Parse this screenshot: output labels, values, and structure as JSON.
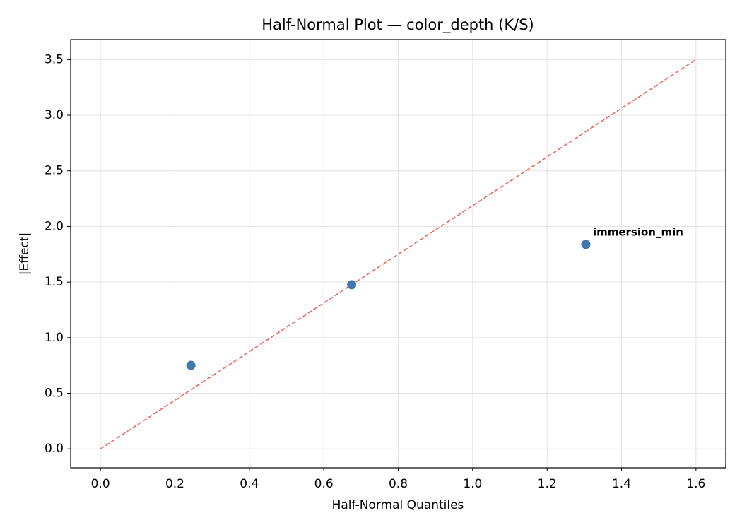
{
  "chart_data": {
    "type": "scatter",
    "title": "Half-Normal Plot — color_depth (K/S)",
    "x_label": "Half-Normal Quantiles",
    "y_label": "|Effect|",
    "series": [
      {
        "name": "effects",
        "color": "#4277b0",
        "x": [
          0.243,
          0.675,
          1.304
        ],
        "values": [
          0.751,
          1.476,
          1.839
        ]
      }
    ],
    "reference_line": {
      "x": [
        0,
        1.6
      ],
      "y": [
        0,
        3.5
      ],
      "color": "#f0645a"
    },
    "annotations": [
      {
        "text": "immersion_min",
        "x": 1.304,
        "y": 1.839,
        "color": "#ff0000"
      }
    ],
    "xlim": [
      -0.08,
      1.68
    ],
    "ylim": [
      -0.17,
      3.68
    ],
    "xticks": [
      {
        "value": 0,
        "label": "0.0"
      },
      0.2,
      0.4,
      0.6,
      0.8,
      {
        "value": 1,
        "label": "1.0"
      },
      1.2,
      1.4,
      1.6
    ],
    "yticks": [
      {
        "value": 0,
        "label": "0.0"
      },
      0.5,
      {
        "value": 1,
        "label": "1.0"
      },
      1.5,
      {
        "value": 2,
        "label": "2.0"
      },
      2.5,
      {
        "value": 3,
        "label": "3.0"
      },
      3.5
    ],
    "grid": true
  }
}
